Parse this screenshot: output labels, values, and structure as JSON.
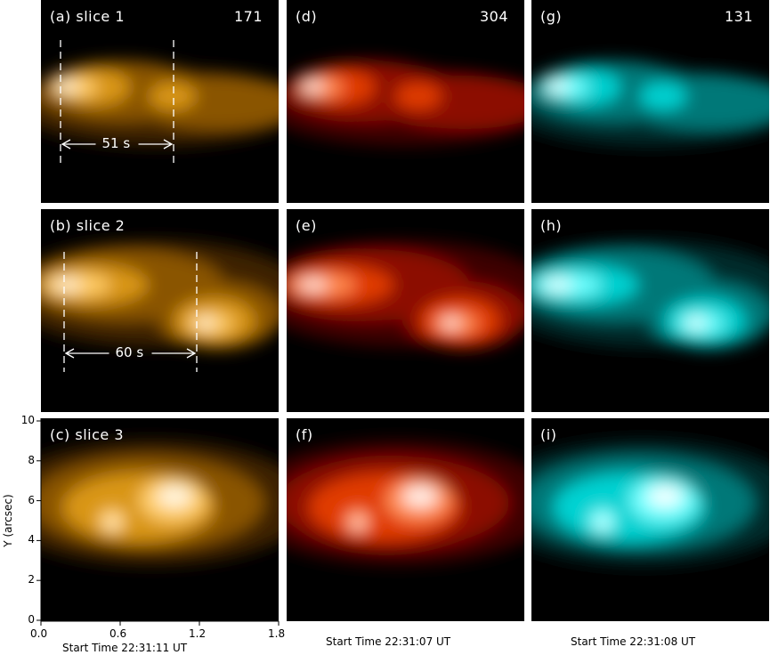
{
  "panels": [
    {
      "id": "a",
      "label": "(a) slice 1",
      "channel": "171",
      "palette": "gold",
      "slice": 1
    },
    {
      "id": "d",
      "label": "(d)",
      "channel": "304",
      "palette": "red",
      "slice": 1
    },
    {
      "id": "g",
      "label": "(g)",
      "channel": "131",
      "palette": "cyan",
      "slice": 1
    },
    {
      "id": "b",
      "label": "(b) slice 2",
      "channel": "",
      "palette": "gold",
      "slice": 2
    },
    {
      "id": "e",
      "label": "(e)",
      "channel": "",
      "palette": "red",
      "slice": 2
    },
    {
      "id": "h",
      "label": "(h)",
      "channel": "",
      "palette": "cyan",
      "slice": 2
    },
    {
      "id": "c",
      "label": "(c) slice 3",
      "channel": "",
      "palette": "gold",
      "slice": 3
    },
    {
      "id": "f",
      "label": "(f)",
      "channel": "",
      "palette": "red",
      "slice": 3
    },
    {
      "id": "i",
      "label": "(i)",
      "channel": "",
      "palette": "cyan",
      "slice": 3
    }
  ],
  "markers": [
    {
      "panel": "a",
      "label": "51 s"
    },
    {
      "panel": "b",
      "label": "60 s"
    }
  ],
  "axes": {
    "x_ticks": [
      "0.0",
      "0.6",
      "1.2",
      "1.8"
    ],
    "y_ticks": [
      "0",
      "2",
      "4",
      "6",
      "8",
      "10"
    ],
    "ylabel": "Y (arcsec)",
    "start_times": [
      "Start Time 22:31:11 UT",
      "Start Time 22:31:07 UT",
      "Start Time 22:31:08 UT"
    ]
  },
  "colors": {
    "gold": [
      "#000000",
      "#3d2200",
      "#8a5400",
      "#d99614",
      "#ffcc66",
      "#fff6e0"
    ],
    "red": [
      "#000000",
      "#3c0000",
      "#8c0c00",
      "#e03a00",
      "#ff8a50",
      "#fff0e8"
    ],
    "cyan": [
      "#000000",
      "#002c2c",
      "#007878",
      "#00d2d2",
      "#70ffff",
      "#f2ffff"
    ]
  }
}
